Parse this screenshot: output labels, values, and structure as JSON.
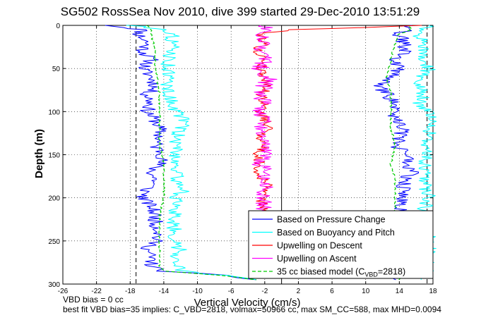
{
  "chart_data": {
    "type": "line",
    "title": "SG502 RossSea Nov 2010, dive 399 started 29-Dec-2010 13:51:29",
    "xlabel": "Vertical Velocity (cm/s)",
    "ylabel": "Depth (m)",
    "xlim": [
      -26,
      18
    ],
    "ylim": [
      0,
      300
    ],
    "y_reversed": true,
    "grid": true,
    "grid_style": "dotted",
    "xticks": [
      -26,
      -22,
      -18,
      -14,
      -10,
      -6,
      -2,
      2,
      6,
      10,
      14,
      18
    ],
    "yticks": [
      0,
      50,
      100,
      150,
      200,
      250,
      300
    ],
    "xtick_labels": [
      "-26",
      "-22",
      "-18",
      "-14",
      "-10",
      "-6",
      "-2",
      "2",
      "6",
      "10",
      "14",
      "18"
    ],
    "ytick_labels": [
      "0",
      "50",
      "100",
      "150",
      "200",
      "250",
      "300"
    ],
    "reference_lines": [
      {
        "x": -17.3,
        "style": "dashed",
        "color": "#000000"
      },
      {
        "x": 0,
        "style": "solid",
        "color": "#000000"
      },
      {
        "x": 17.3,
        "style": "dashed",
        "color": "#000000"
      }
    ],
    "legend_position": "bottom-right",
    "series": [
      {
        "name": "Based on Pressure Change",
        "color": "#0000ff",
        "descent": {
          "depth": [
            0,
            5,
            10,
            20,
            30,
            40,
            50,
            60,
            70,
            80,
            90,
            100,
            110,
            120,
            130,
            140,
            150,
            160,
            170,
            180,
            190,
            200,
            210,
            220,
            230,
            240,
            250,
            260,
            270,
            280,
            285,
            290,
            295
          ],
          "velocity": [
            -20.5,
            -16.5,
            -17,
            -16,
            -16.5,
            -15.5,
            -16.5,
            -15.5,
            -15,
            -16,
            -15.5,
            -16,
            -15,
            -14.5,
            -14.5,
            -15,
            -14,
            -14.5,
            -15.5,
            -15,
            -16,
            -16.5,
            -15.5,
            -15,
            -15,
            -14.5,
            -15,
            -16,
            -15.5,
            -15.5,
            -14,
            -7,
            -3
          ]
        },
        "ascent": {
          "depth": [
            295,
            280,
            270,
            260,
            250,
            240,
            230,
            220,
            210,
            200,
            190,
            180,
            170,
            160,
            150,
            140,
            130,
            120,
            110,
            100,
            90,
            80,
            70,
            60,
            50,
            40,
            30,
            20,
            10,
            5,
            0
          ],
          "velocity": [
            14,
            15,
            15.5,
            14.5,
            14,
            14.5,
            14,
            15,
            14,
            14.5,
            14.5,
            14.5,
            15.5,
            14.5,
            15.5,
            13.5,
            14,
            14.5,
            14,
            13,
            13.5,
            12.5,
            11.5,
            13,
            14,
            13.5,
            14.5,
            14.5,
            14,
            15,
            15.5
          ]
        }
      },
      {
        "name": "Based on Buoyancy and Pitch",
        "color": "#00ffff",
        "descent": {
          "depth": [
            0,
            5,
            10,
            20,
            30,
            40,
            50,
            60,
            70,
            80,
            90,
            100,
            110,
            120,
            130,
            140,
            150,
            160,
            170,
            180,
            190,
            200,
            210,
            220,
            230,
            240,
            250,
            260,
            270,
            280,
            285,
            290,
            295
          ],
          "velocity": [
            -18,
            -13.5,
            -13,
            -13,
            -13,
            -13.5,
            -13.5,
            -13.5,
            -13.5,
            -13.5,
            -13,
            -12.5,
            -11.5,
            -12,
            -12.5,
            -12.5,
            -12.5,
            -12.5,
            -12.5,
            -12.5,
            -11.5,
            -12.5,
            -13,
            -12.5,
            -13,
            -12.5,
            -13,
            -12,
            -12.5,
            -12,
            -12,
            -7,
            -3
          ]
        },
        "ascent": {
          "depth": [
            295,
            280,
            270,
            260,
            250,
            240,
            230,
            220,
            210,
            200,
            190,
            180,
            170,
            160,
            150,
            140,
            130,
            120,
            110,
            100,
            90,
            80,
            70,
            60,
            50,
            40,
            30,
            20,
            10,
            5,
            0
          ],
          "velocity": [
            17,
            17.5,
            17,
            17.5,
            17.5,
            17.5,
            17.5,
            17,
            17,
            17.5,
            17,
            17,
            17,
            17,
            17.5,
            17,
            17.5,
            17.5,
            18,
            17.5,
            16.5,
            17,
            16.5,
            16.5,
            17.5,
            17,
            17,
            17,
            16,
            16.5,
            17.5
          ]
        }
      },
      {
        "name": "Upwelling on Descent",
        "color": "#ff0000",
        "depth": [
          0,
          5,
          10,
          20,
          30,
          40,
          50,
          60,
          70,
          80,
          90,
          100,
          110,
          120,
          130,
          140,
          150,
          160,
          170,
          180,
          190,
          200,
          210,
          220,
          230,
          240,
          250,
          260,
          270,
          280,
          285
        ],
        "velocity": [
          17,
          1.5,
          -2.5,
          -2,
          -3,
          -2,
          -2.5,
          -2,
          -1.5,
          -2.5,
          -2,
          -2.5,
          -2,
          -1.5,
          -2.5,
          -2,
          -3,
          -2.5,
          -3,
          -2,
          -1.5,
          -2.5,
          -2,
          -2.5,
          -1.5,
          -2,
          -2.5,
          -2,
          -2.5,
          -2,
          -2
        ]
      },
      {
        "name": "Upwelling on Ascent",
        "color": "#ff00ff",
        "depth": [
          0,
          5,
          10,
          20,
          30,
          40,
          50,
          60,
          70,
          80,
          90,
          100,
          110,
          120,
          130,
          140,
          150,
          160,
          170,
          180,
          190,
          200,
          210,
          220,
          230,
          240,
          250,
          260,
          270,
          280,
          285
        ],
        "velocity": [
          -2,
          -2,
          -2.5,
          -2,
          -2.5,
          -2,
          -2.5,
          -1.5,
          -2,
          -2.5,
          -2,
          -2.5,
          -2,
          -2.5,
          -3,
          -2,
          -1.5,
          -2.5,
          -2,
          -2.5,
          -2,
          -2.5,
          -2,
          -2.5,
          -2,
          -2.5,
          -2,
          -2.5,
          -2,
          -2.5,
          -2
        ]
      },
      {
        "name": "35 cc biased model (C<sub>VBD</sub>=2818)",
        "legend_text": "35 cc biased model (C",
        "legend_sub": "VBD",
        "legend_tail": "=2818)",
        "color": "#00cc00",
        "style": "dashed",
        "descent": {
          "depth": [
            0,
            5,
            10,
            30,
            50,
            80,
            100,
            120,
            140,
            160,
            180,
            200,
            220,
            240,
            260,
            280,
            285,
            290,
            295
          ],
          "velocity": [
            -16,
            -15.5,
            -15.5,
            -15,
            -15,
            -14.5,
            -14.5,
            -14.5,
            -14.5,
            -14,
            -14,
            -14,
            -14.5,
            -14.5,
            -14.5,
            -14.5,
            -14,
            -7,
            -3
          ]
        },
        "ascent": {
          "depth": [
            295,
            280,
            260,
            240,
            220,
            200,
            180,
            160,
            140,
            120,
            100,
            80,
            60,
            40,
            20,
            10,
            5,
            0
          ],
          "velocity": [
            14,
            14,
            13.5,
            13.5,
            13.5,
            13.5,
            13.5,
            13,
            13.5,
            13,
            13,
            13,
            12.5,
            13,
            13.5,
            14,
            15.5,
            15
          ]
        }
      }
    ],
    "annotations": [
      "VBD bias = 0 cc",
      "best fit VBD bias=35 implies: C_VBD=2818, volmax=50966 cc, max SM_CC=588, max MHD=0.0094"
    ]
  }
}
